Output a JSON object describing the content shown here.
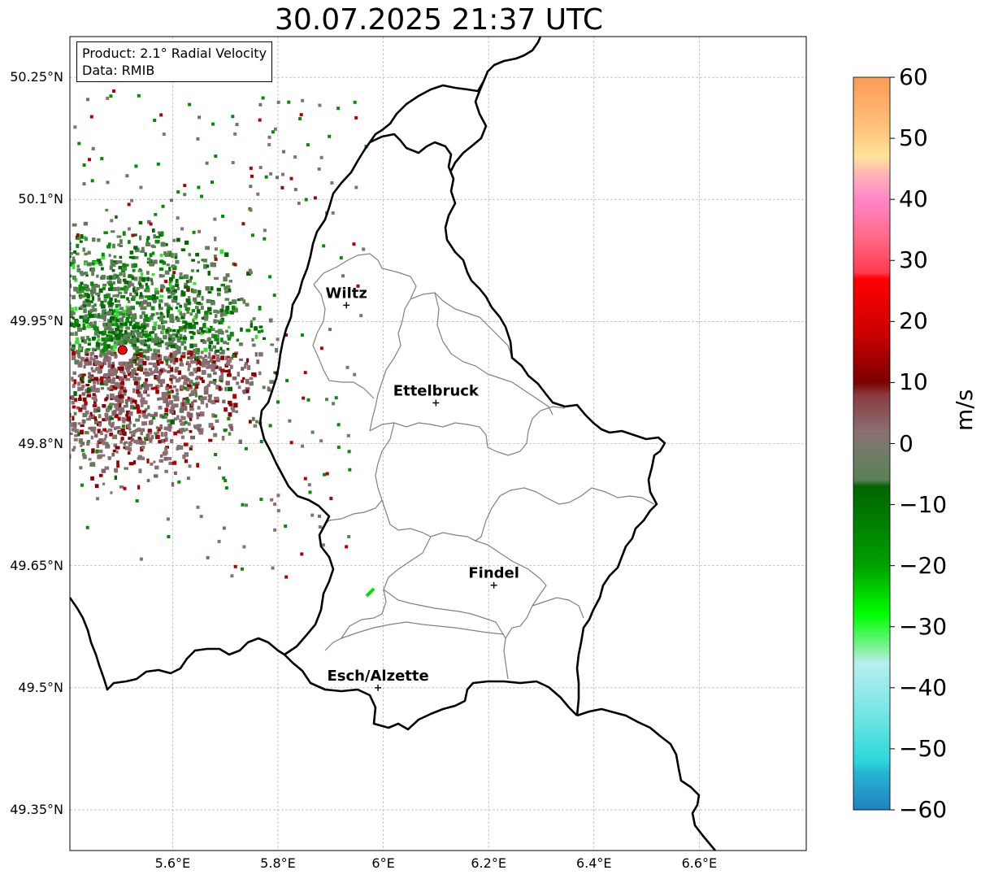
{
  "title": "30.07.2025 21:37 UTC",
  "info": {
    "product": "Product: 2.1° Radial Velocity",
    "data_source": "Data: RMIB"
  },
  "lat_labels": [
    "50.25°N",
    "50.1°N",
    "49.95°N",
    "49.8°N",
    "49.65°N",
    "49.5°N",
    "49.35°N"
  ],
  "lon_labels": [
    "5.6°E",
    "5.8°E",
    "6°E",
    "6.2°E",
    "6.4°E",
    "6.6°E"
  ],
  "cities": [
    {
      "name": "Wiltz",
      "lon": 5.93,
      "lat": 49.97
    },
    {
      "name": "Ettelbruck",
      "lon": 6.1,
      "lat": 49.85
    },
    {
      "name": "Findel",
      "lon": 6.21,
      "lat": 49.626
    },
    {
      "name": "Esch/Alzette",
      "lon": 5.99,
      "lat": 49.5
    }
  ],
  "radar_site": {
    "lon": 5.505,
    "lat": 49.915,
    "color": "#ff0000"
  },
  "colorbar": {
    "unit": "m/s",
    "min": -60,
    "max": 60,
    "ticks": [
      "60",
      "50",
      "40",
      "30",
      "20",
      "10",
      "0",
      "−10",
      "−20",
      "−30",
      "−40",
      "−50",
      "−60"
    ],
    "stops": [
      {
        "v": 60,
        "c": "#ff9a55"
      },
      {
        "v": 52,
        "c": "#ffc07a"
      },
      {
        "v": 47,
        "c": "#ffe39a"
      },
      {
        "v": 44,
        "c": "#ffb3b8"
      },
      {
        "v": 40,
        "c": "#ff86c8"
      },
      {
        "v": 34,
        "c": "#ff6a8a"
      },
      {
        "v": 28,
        "c": "#ff3a50"
      },
      {
        "v": 27,
        "c": "#ff0000"
      },
      {
        "v": 18,
        "c": "#cc0000"
      },
      {
        "v": 10,
        "c": "#7a0000"
      },
      {
        "v": 8,
        "c": "#8b3a3f"
      },
      {
        "v": 2,
        "c": "#8a6f73"
      },
      {
        "v": -2,
        "c": "#6e7d66"
      },
      {
        "v": -6,
        "c": "#5b7f55"
      },
      {
        "v": -7,
        "c": "#006400"
      },
      {
        "v": -20,
        "c": "#00a000"
      },
      {
        "v": -28,
        "c": "#00ff00"
      },
      {
        "v": -34,
        "c": "#8cf0a8"
      },
      {
        "v": -36,
        "c": "#b8eeee"
      },
      {
        "v": -45,
        "c": "#6ee4e4"
      },
      {
        "v": -52,
        "c": "#2ad8d8"
      },
      {
        "v": -54,
        "c": "#28b4d2"
      },
      {
        "v": -60,
        "c": "#2080c0"
      }
    ]
  }
}
